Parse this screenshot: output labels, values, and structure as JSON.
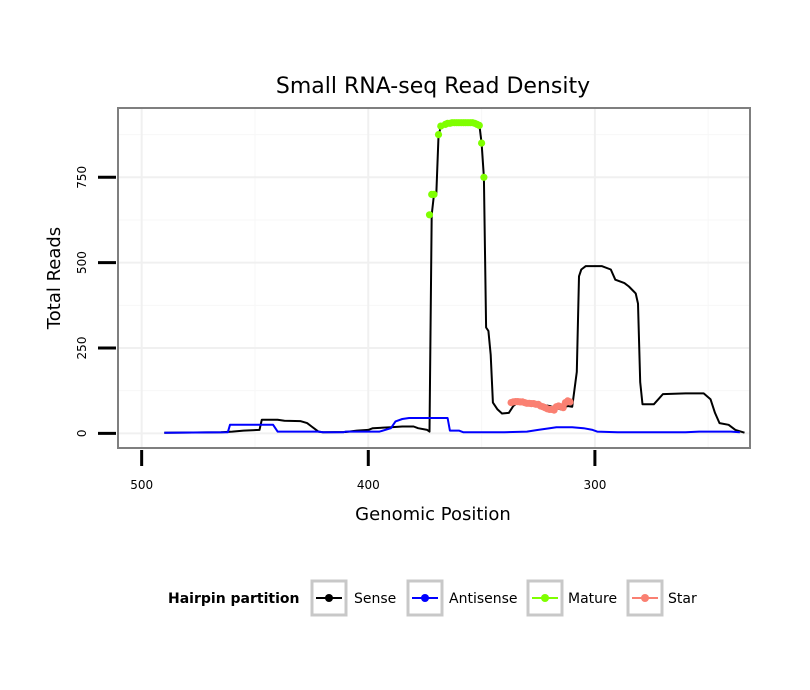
{
  "chart_data": {
    "type": "line",
    "title": "Small RNA-seq Read Density",
    "xlabel": "Genomic Position",
    "ylabel": "Total Reads",
    "xlim": [
      510,
      232
    ],
    "ylim": [
      -40,
      950
    ],
    "x_ticks": [
      500,
      400,
      300
    ],
    "y_ticks": [
      0,
      250,
      500,
      750
    ],
    "x_tick_labels": [
      "500",
      "400",
      "300"
    ],
    "y_tick_labels": [
      "0",
      "250",
      "500",
      "750"
    ],
    "grid": true,
    "legend": {
      "title": "Hairpin partition",
      "position": "bottom",
      "entries": [
        {
          "name": "Sense",
          "color": "#000000"
        },
        {
          "name": "Antisense",
          "color": "#0000ff"
        },
        {
          "name": "Mature",
          "color": "#7fff00"
        },
        {
          "name": "Star",
          "color": "#fa8072"
        }
      ]
    },
    "series": [
      {
        "name": "Sense",
        "color": "#000000",
        "style": "line",
        "points": [
          [
            490,
            2
          ],
          [
            465,
            3
          ],
          [
            460,
            5
          ],
          [
            455,
            8
          ],
          [
            448,
            10
          ],
          [
            447,
            40
          ],
          [
            440,
            40
          ],
          [
            437,
            37
          ],
          [
            430,
            36
          ],
          [
            427,
            30
          ],
          [
            425,
            20
          ],
          [
            422,
            5
          ],
          [
            420,
            3
          ],
          [
            410,
            4
          ],
          [
            405,
            8
          ],
          [
            400,
            10
          ],
          [
            398,
            15
          ],
          [
            390,
            18
          ],
          [
            385,
            20
          ],
          [
            380,
            20
          ],
          [
            378,
            15
          ],
          [
            374,
            10
          ],
          [
            373,
            5
          ],
          [
            372,
            640
          ],
          [
            371,
            700
          ],
          [
            370,
            700
          ],
          [
            369,
            870
          ],
          [
            368,
            900
          ],
          [
            366,
            905
          ],
          [
            362,
            908
          ],
          [
            358,
            910
          ],
          [
            354,
            910
          ],
          [
            351,
            905
          ],
          [
            350,
            850
          ],
          [
            349,
            750
          ],
          [
            348,
            310
          ],
          [
            347,
            300
          ],
          [
            346,
            230
          ],
          [
            345,
            90
          ],
          [
            343,
            70
          ],
          [
            341,
            58
          ],
          [
            338,
            60
          ],
          [
            336,
            80
          ],
          [
            333,
            95
          ],
          [
            329,
            88
          ],
          [
            325,
            85
          ],
          [
            320,
            80
          ],
          [
            315,
            70
          ],
          [
            312,
            80
          ],
          [
            310,
            78
          ],
          [
            308,
            180
          ],
          [
            307,
            460
          ],
          [
            306,
            480
          ],
          [
            304,
            490
          ],
          [
            297,
            490
          ],
          [
            293,
            480
          ],
          [
            291,
            450
          ],
          [
            287,
            440
          ],
          [
            285,
            430
          ],
          [
            282,
            410
          ],
          [
            281,
            380
          ],
          [
            280,
            150
          ],
          [
            279,
            85
          ],
          [
            274,
            85
          ],
          [
            272,
            100
          ],
          [
            270,
            115
          ],
          [
            260,
            117
          ],
          [
            252,
            117
          ],
          [
            249,
            100
          ],
          [
            247,
            60
          ],
          [
            245,
            30
          ],
          [
            241,
            25
          ],
          [
            238,
            10
          ],
          [
            234,
            2
          ]
        ]
      },
      {
        "name": "Antisense",
        "color": "#0000ff",
        "style": "line",
        "points": [
          [
            490,
            2
          ],
          [
            462,
            3
          ],
          [
            461,
            25
          ],
          [
            445,
            25
          ],
          [
            442,
            25
          ],
          [
            440,
            5
          ],
          [
            422,
            5
          ],
          [
            420,
            3
          ],
          [
            411,
            3
          ],
          [
            410,
            5
          ],
          [
            395,
            5
          ],
          [
            390,
            15
          ],
          [
            388,
            35
          ],
          [
            385,
            42
          ],
          [
            382,
            45
          ],
          [
            372,
            45
          ],
          [
            365,
            45
          ],
          [
            364,
            8
          ],
          [
            360,
            8
          ],
          [
            358,
            3
          ],
          [
            340,
            3
          ],
          [
            330,
            5
          ],
          [
            325,
            10
          ],
          [
            320,
            15
          ],
          [
            317,
            18
          ],
          [
            310,
            18
          ],
          [
            305,
            15
          ],
          [
            301,
            10
          ],
          [
            299,
            5
          ],
          [
            290,
            3
          ],
          [
            260,
            3
          ],
          [
            254,
            5
          ],
          [
            240,
            5
          ],
          [
            236,
            3
          ]
        ]
      },
      {
        "name": "Mature",
        "color": "#7fff00",
        "style": "points",
        "points": [
          [
            373,
            640
          ],
          [
            372,
            700
          ],
          [
            371,
            700
          ],
          [
            369,
            875
          ],
          [
            368,
            900
          ],
          [
            366,
            905
          ],
          [
            365,
            908
          ],
          [
            364,
            908
          ],
          [
            363,
            910
          ],
          [
            362,
            910
          ],
          [
            361,
            910
          ],
          [
            360,
            910
          ],
          [
            359,
            910
          ],
          [
            358,
            910
          ],
          [
            357,
            910
          ],
          [
            356,
            910
          ],
          [
            355,
            910
          ],
          [
            354,
            910
          ],
          [
            353,
            908
          ],
          [
            352,
            905
          ],
          [
            351,
            902
          ],
          [
            350,
            850
          ],
          [
            349,
            750
          ]
        ]
      },
      {
        "name": "Star",
        "color": "#fa8072",
        "style": "points",
        "points": [
          [
            337,
            90
          ],
          [
            336,
            92
          ],
          [
            335,
            93
          ],
          [
            334,
            93
          ],
          [
            333,
            92
          ],
          [
            332,
            92
          ],
          [
            331,
            90
          ],
          [
            330,
            88
          ],
          [
            329,
            88
          ],
          [
            328,
            87
          ],
          [
            327,
            87
          ],
          [
            326,
            85
          ],
          [
            325,
            85
          ],
          [
            324,
            80
          ],
          [
            323,
            78
          ],
          [
            322,
            75
          ],
          [
            321,
            72
          ],
          [
            320,
            70
          ],
          [
            319,
            70
          ],
          [
            318,
            68
          ],
          [
            317,
            78
          ],
          [
            316,
            80
          ],
          [
            315,
            78
          ],
          [
            314,
            75
          ],
          [
            313,
            90
          ],
          [
            312,
            95
          ],
          [
            311,
            92
          ]
        ]
      }
    ]
  }
}
